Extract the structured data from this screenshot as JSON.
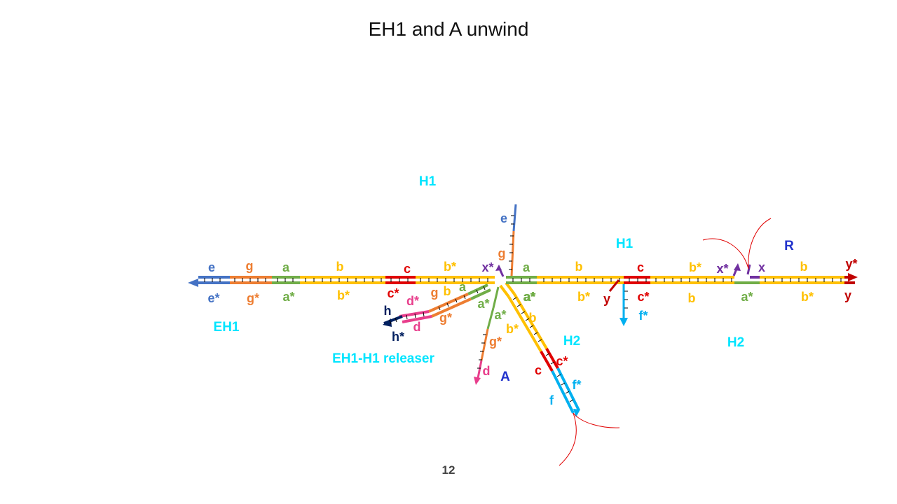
{
  "title": "EH1 and A unwind",
  "page_number": "12",
  "colors": {
    "e": "#4472c4",
    "g": "#ed7d31",
    "a": "#70ad47",
    "b": "#ffc000",
    "c": "#e00000",
    "d": "#e83e8c",
    "h": "#002060",
    "x": "#7030a0",
    "y": "#c00000",
    "f": "#00b0f0",
    "complex": "#00e5ff",
    "strand": "#2233cc",
    "tick": "#000000",
    "arc": "#e00000"
  },
  "complex_labels": {
    "h1_top": "H1",
    "h1_right": "H1",
    "eh1": "EH1",
    "releaser": "EH1-H1 releaser",
    "h2_mid": "H2",
    "h2_right": "H2"
  },
  "strand_labels": {
    "a_strand": "A",
    "r_strand": "R"
  },
  "domains": {
    "top_left": [
      "e",
      "g",
      "a",
      "b",
      "c",
      "b*",
      "x*"
    ],
    "bottom_left": [
      "e*",
      "g*",
      "a*",
      "b*",
      "c*"
    ],
    "releaser_top": [
      "d*",
      "g",
      "b",
      "a"
    ],
    "releaser_bottom": [
      "h",
      "h*",
      "d",
      "g*"
    ],
    "hairpin_up": [
      "e",
      "g"
    ],
    "a_strand": [
      "a*",
      "a*",
      "g*",
      "d"
    ],
    "h2_diag": [
      "a*",
      "b*",
      "b",
      "c",
      "c*",
      "f",
      "f*"
    ],
    "right_top": [
      "a",
      "b",
      "c",
      "b*",
      "x*",
      "x",
      "b",
      "y*"
    ],
    "right_bottom": [
      "a*",
      "b*",
      "y",
      "c*",
      "f*",
      "b",
      "a*",
      "b*",
      "y"
    ]
  }
}
